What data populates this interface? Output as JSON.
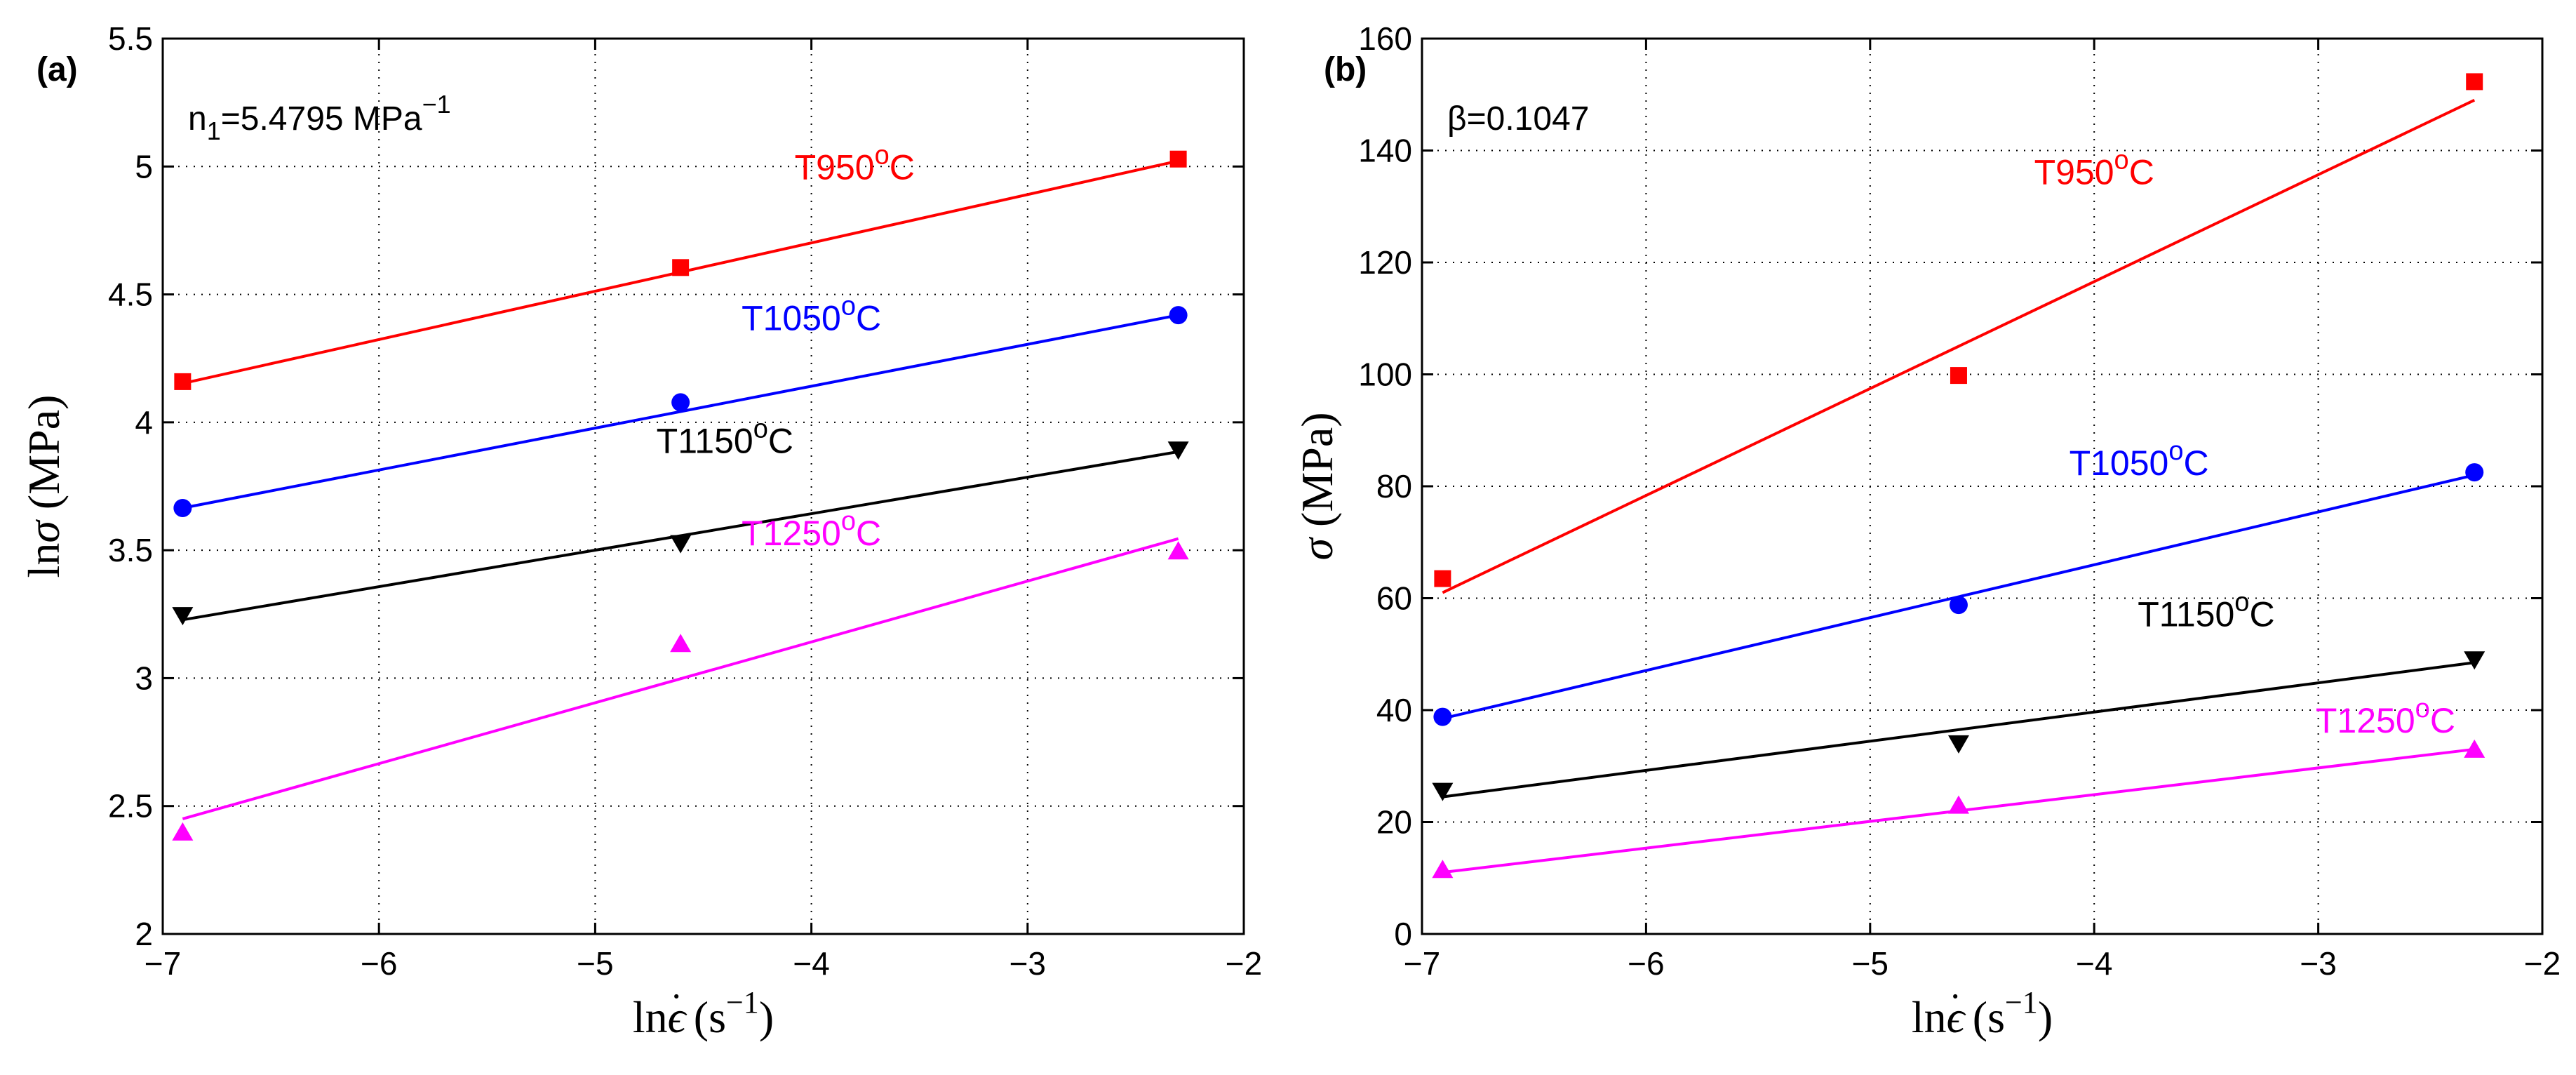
{
  "chart_data": [
    {
      "panel_label": "(a)",
      "type": "scatter",
      "xlabel_main": "ln",
      "xlabel_symbol": "ϵ",
      "xlabel_dot": "·",
      "xlabel_unit_open": " (s",
      "xlabel_unit_sup": "−1",
      "xlabel_unit_close": ")",
      "ylabel_main": "ln",
      "ylabel_symbol": "σ",
      "ylabel_unit": " (MPa)",
      "xlim": [
        -7,
        -2
      ],
      "ylim": [
        2,
        5.5
      ],
      "x_ticks": [
        -7,
        -6,
        -5,
        -4,
        -3,
        -2
      ],
      "x_tick_labels": [
        "−7",
        "−6",
        "−5",
        "−4",
        "−3",
        "−2"
      ],
      "y_ticks": [
        2,
        2.5,
        3,
        3.5,
        4,
        4.5,
        5,
        5.5
      ],
      "y_tick_labels": [
        "2",
        "2.5",
        "3",
        "3.5",
        "4",
        "4.5",
        "5",
        "5.5"
      ],
      "grid": true,
      "annotation": {
        "base": "n",
        "sub": "1",
        "text": "=5.4795 MPa",
        "sup": "−1"
      },
      "series": [
        {
          "name": "T950",
          "sup": "o",
          "unit": "C",
          "color": "#ff0000",
          "marker": "square",
          "x": [
            -6.908,
            -4.605,
            -2.303
          ],
          "y": [
            4.159,
            4.605,
            5.029
          ],
          "fit": [
            [
              -6.908,
              4.152
            ],
            [
              -2.303,
              5.022
            ]
          ],
          "label_at": [
            -3.8,
            4.95
          ]
        },
        {
          "name": "T1050",
          "sup": "o",
          "unit": "C",
          "color": "#0000ff",
          "marker": "circle",
          "x": [
            -6.908,
            -4.605,
            -2.303
          ],
          "y": [
            3.665,
            4.078,
            4.419
          ],
          "fit": [
            [
              -6.908,
              3.665
            ],
            [
              -2.303,
              4.419
            ]
          ],
          "label_at": [
            -4.0,
            4.36
          ]
        },
        {
          "name": "T1150",
          "sup": "o",
          "unit": "C",
          "color": "#000000",
          "marker": "triangle-down",
          "x": [
            -6.908,
            -4.605,
            -2.303
          ],
          "y": [
            3.245,
            3.526,
            3.892
          ],
          "fit": [
            [
              -6.908,
              3.228
            ],
            [
              -2.303,
              3.885
            ]
          ],
          "label_at": [
            -4.4,
            3.88
          ]
        },
        {
          "name": "T1250",
          "sup": "o",
          "unit": "C",
          "color": "#ff00ff",
          "marker": "triangle-up",
          "x": [
            -6.908,
            -4.605,
            -2.303
          ],
          "y": [
            2.398,
            3.135,
            3.497
          ],
          "fit": [
            [
              -6.908,
              2.45
            ],
            [
              -2.303,
              3.545
            ]
          ],
          "label_at": [
            -4.0,
            3.52
          ]
        }
      ]
    },
    {
      "panel_label": "(b)",
      "type": "scatter",
      "xlabel_main": "ln",
      "xlabel_symbol": "ϵ",
      "xlabel_dot": "·",
      "xlabel_unit_open": " (s",
      "xlabel_unit_sup": "−1",
      "xlabel_unit_close": ")",
      "ylabel_main": "",
      "ylabel_symbol": "σ",
      "ylabel_unit": " (MPa)",
      "xlim": [
        -7,
        -2
      ],
      "ylim": [
        0,
        160
      ],
      "x_ticks": [
        -7,
        -6,
        -5,
        -4,
        -3,
        -2
      ],
      "x_tick_labels": [
        "−7",
        "−6",
        "−5",
        "−4",
        "−3",
        "−2"
      ],
      "y_ticks": [
        0,
        20,
        40,
        60,
        80,
        100,
        120,
        140,
        160
      ],
      "y_tick_labels": [
        "0",
        "20",
        "40",
        "60",
        "80",
        "100",
        "120",
        "140",
        "160"
      ],
      "grid": true,
      "annotation": {
        "base": "β=0.1047",
        "sub": "",
        "text": "",
        "sup": ""
      },
      "series": [
        {
          "name": "T950",
          "sup": "o",
          "unit": "C",
          "color": "#ff0000",
          "marker": "square",
          "x": [
            -6.908,
            -4.605,
            -2.303
          ],
          "y": [
            63.5,
            99.8,
            152.3
          ],
          "fit": [
            [
              -6.908,
              61.0
            ],
            [
              -2.303,
              149.0
            ]
          ],
          "label_at": [
            -4.0,
            134
          ]
        },
        {
          "name": "T1050",
          "sup": "o",
          "unit": "C",
          "color": "#0000ff",
          "marker": "circle",
          "x": [
            -6.908,
            -4.605,
            -2.303
          ],
          "y": [
            38.8,
            58.8,
            82.5
          ],
          "fit": [
            [
              -6.908,
              38.5
            ],
            [
              -2.303,
              82.0
            ]
          ],
          "label_at": [
            -3.8,
            82
          ]
        },
        {
          "name": "T1150",
          "sup": "o",
          "unit": "C",
          "color": "#000000",
          "marker": "triangle-down",
          "x": [
            -6.908,
            -4.605,
            -2.303
          ],
          "y": [
            25.5,
            34.0,
            49.0
          ],
          "fit": [
            [
              -6.908,
              24.5
            ],
            [
              -2.303,
              48.5
            ]
          ],
          "label_at": [
            -3.5,
            55
          ]
        },
        {
          "name": "T1250",
          "sup": "o",
          "unit": "C",
          "color": "#ff00ff",
          "marker": "triangle-up",
          "x": [
            -6.908,
            -4.605,
            -2.303
          ],
          "y": [
            11.5,
            23.0,
            33.0
          ],
          "fit": [
            [
              -6.908,
              11.0
            ],
            [
              -2.303,
              33.0
            ]
          ],
          "label_at": [
            -2.7,
            36
          ]
        }
      ]
    }
  ]
}
